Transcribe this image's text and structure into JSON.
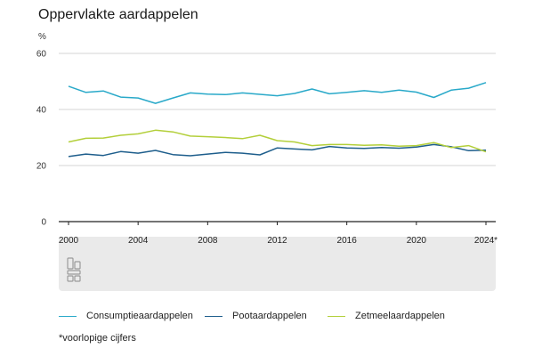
{
  "chart_data": {
    "type": "line",
    "title": "Oppervlakte aardappelen",
    "ylabel": "%",
    "xlabel": "",
    "ylim": [
      0,
      60
    ],
    "xlim": [
      2000,
      2024
    ],
    "yticks": [
      0,
      20,
      40,
      60
    ],
    "xticks": [
      {
        "value": 2000,
        "label": "2000"
      },
      {
        "value": 2004,
        "label": "2004"
      },
      {
        "value": 2008,
        "label": "2008"
      },
      {
        "value": 2012,
        "label": "2012"
      },
      {
        "value": 2016,
        "label": "2016"
      },
      {
        "value": 2020,
        "label": "2020"
      },
      {
        "value": 2024,
        "label": "2024*"
      }
    ],
    "grid": "horizontal",
    "legend": "bottom",
    "x": [
      2000,
      2001,
      2002,
      2003,
      2004,
      2005,
      2006,
      2007,
      2008,
      2009,
      2010,
      2011,
      2012,
      2013,
      2014,
      2015,
      2016,
      2017,
      2018,
      2019,
      2020,
      2021,
      2022,
      2023,
      2024
    ],
    "series": [
      {
        "name": "Consumptieaardappelen",
        "color": "#29a9c9",
        "values": [
          48.3,
          46.1,
          46.6,
          44.4,
          44.1,
          42.2,
          44.1,
          45.9,
          45.5,
          45.3,
          45.9,
          45.4,
          44.9,
          45.7,
          47.3,
          45.6,
          46.1,
          46.7,
          46.1,
          46.9,
          46.2,
          44.3,
          46.9,
          47.6,
          49.6
        ]
      },
      {
        "name": "Pootaardappelen",
        "color": "#1e5e8c",
        "values": [
          23.2,
          24.1,
          23.6,
          25.0,
          24.4,
          25.4,
          23.9,
          23.5,
          24.1,
          24.7,
          24.4,
          23.8,
          26.3,
          25.9,
          25.6,
          26.8,
          26.3,
          26.1,
          26.4,
          26.2,
          26.6,
          27.5,
          26.7,
          25.3,
          25.5
        ]
      },
      {
        "name": "Zetmeelaardappelen",
        "color": "#b3cf3a",
        "values": [
          28.4,
          29.7,
          29.8,
          30.8,
          31.3,
          32.6,
          32.0,
          30.5,
          30.3,
          30.0,
          29.6,
          30.8,
          28.9,
          28.4,
          27.1,
          27.5,
          27.5,
          27.2,
          27.4,
          26.9,
          27.1,
          28.2,
          26.4,
          27.1,
          24.9
        ]
      }
    ],
    "footnote": "*voorlopige cijfers"
  }
}
